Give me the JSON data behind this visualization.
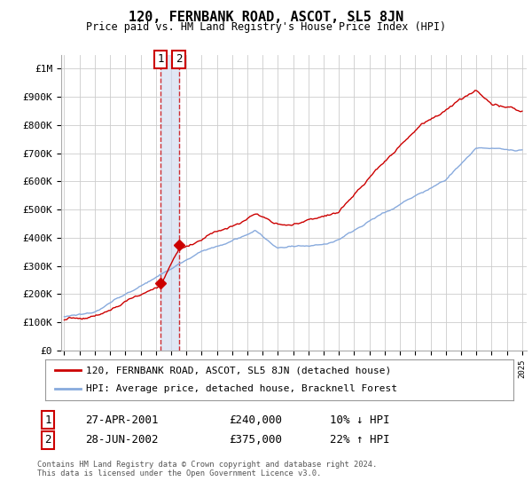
{
  "title": "120, FERNBANK ROAD, ASCOT, SL5 8JN",
  "subtitle": "Price paid vs. HM Land Registry's House Price Index (HPI)",
  "legend_line1": "120, FERNBANK ROAD, ASCOT, SL5 8JN (detached house)",
  "legend_line2": "HPI: Average price, detached house, Bracknell Forest",
  "sale1_date": "27-APR-2001",
  "sale1_price": "£240,000",
  "sale1_hpi": "10% ↓ HPI",
  "sale1_year": 2001.32,
  "sale1_value": 240000,
  "sale2_date": "28-JUN-2002",
  "sale2_price": "£375,000",
  "sale2_hpi": "22% ↑ HPI",
  "sale2_year": 2002.5,
  "sale2_value": 375000,
  "footer1": "Contains HM Land Registry data © Crown copyright and database right 2024.",
  "footer2": "This data is licensed under the Open Government Licence v3.0.",
  "red_color": "#cc0000",
  "blue_color": "#88aadd",
  "shade_color": "#ccd8ee",
  "dashed_color": "#cc0000",
  "grid_color": "#cccccc",
  "background_color": "#ffffff",
  "ylim_max": 1050000,
  "xlim_start": 1994.8,
  "xlim_end": 2025.3
}
